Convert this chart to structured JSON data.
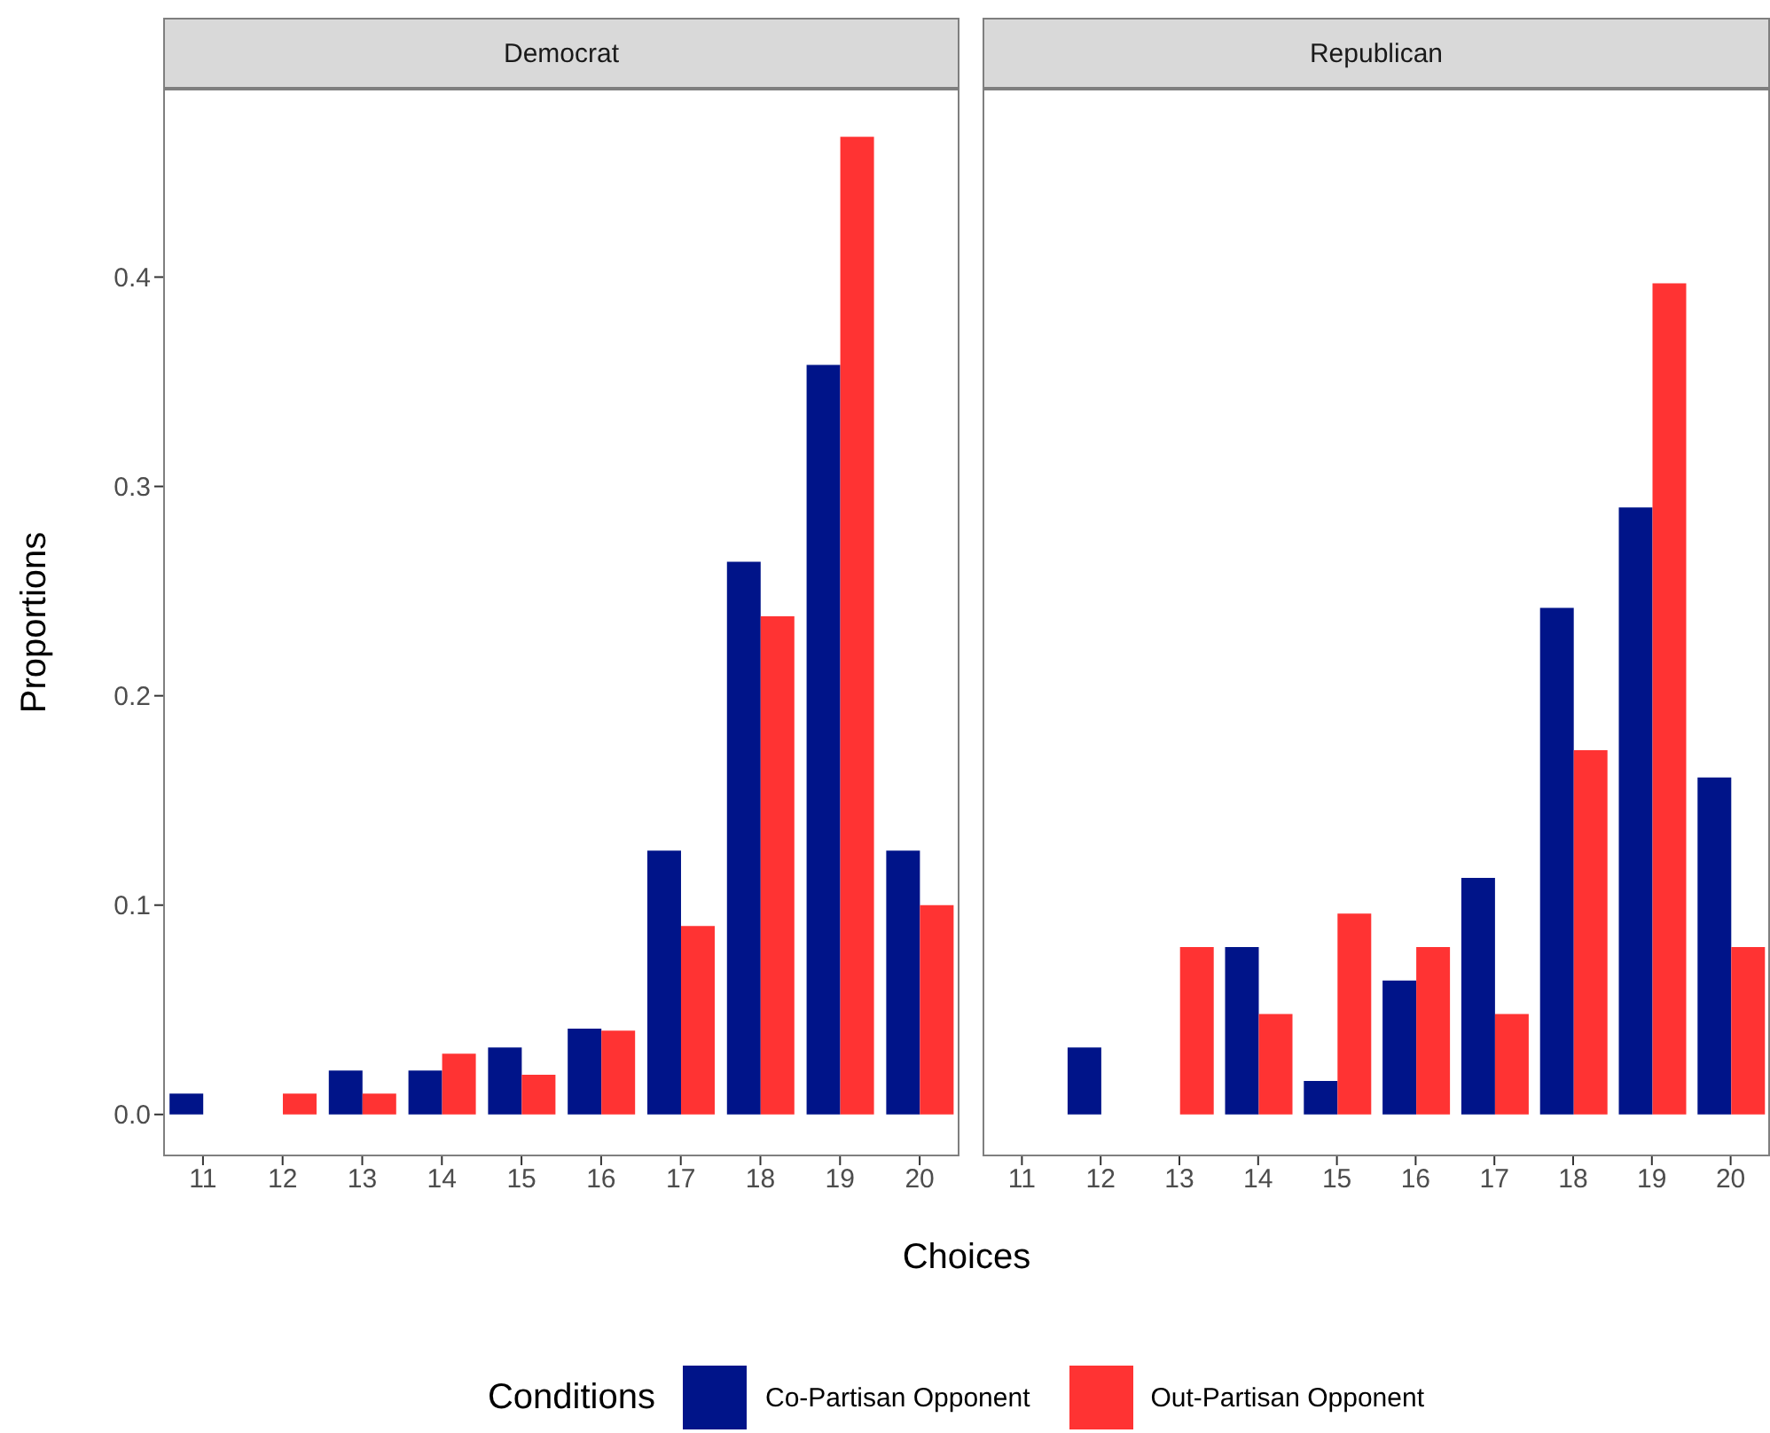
{
  "chart_data": [
    {
      "type": "bar",
      "title": "Democrat",
      "xlabel": "Choices",
      "ylabel": "Proportions",
      "legend_title": "Conditions",
      "legend": "bottom",
      "grid": false,
      "categories": [
        "11",
        "12",
        "13",
        "14",
        "15",
        "16",
        "17",
        "18",
        "19",
        "20"
      ],
      "series": [
        {
          "name": "Co-Partisan Opponent",
          "color": "#001489",
          "values": [
            0.01,
            null,
            0.021,
            0.021,
            0.032,
            0.041,
            0.126,
            0.264,
            0.358,
            0.126
          ]
        },
        {
          "name": "Out-Partisan Opponent",
          "color": "#ff3333",
          "values": [
            null,
            0.01,
            0.01,
            0.029,
            0.019,
            0.04,
            0.09,
            0.238,
            0.467,
            0.1
          ]
        }
      ],
      "ylim": [
        -0.02,
        0.49
      ],
      "yticks": [
        {
          "value": 0,
          "label": "0.0"
        },
        0.1,
        0.2,
        0.3,
        0.4
      ]
    },
    {
      "type": "bar",
      "title": "Republican",
      "grid": false,
      "tick_labels": "x",
      "categories": [
        "11",
        "12",
        "13",
        "14",
        "15",
        "16",
        "17",
        "18",
        "19",
        "20"
      ],
      "series": [
        {
          "color": "#001489",
          "values": [
            null,
            0.032,
            null,
            0.08,
            0.016,
            0.064,
            0.113,
            0.242,
            0.29,
            0.161
          ]
        },
        {
          "color": "#ff3333",
          "values": [
            null,
            null,
            0.08,
            0.048,
            0.096,
            0.08,
            0.048,
            0.174,
            0.397,
            0.08
          ]
        }
      ],
      "ylim": [
        -0.02,
        0.49
      ]
    }
  ]
}
